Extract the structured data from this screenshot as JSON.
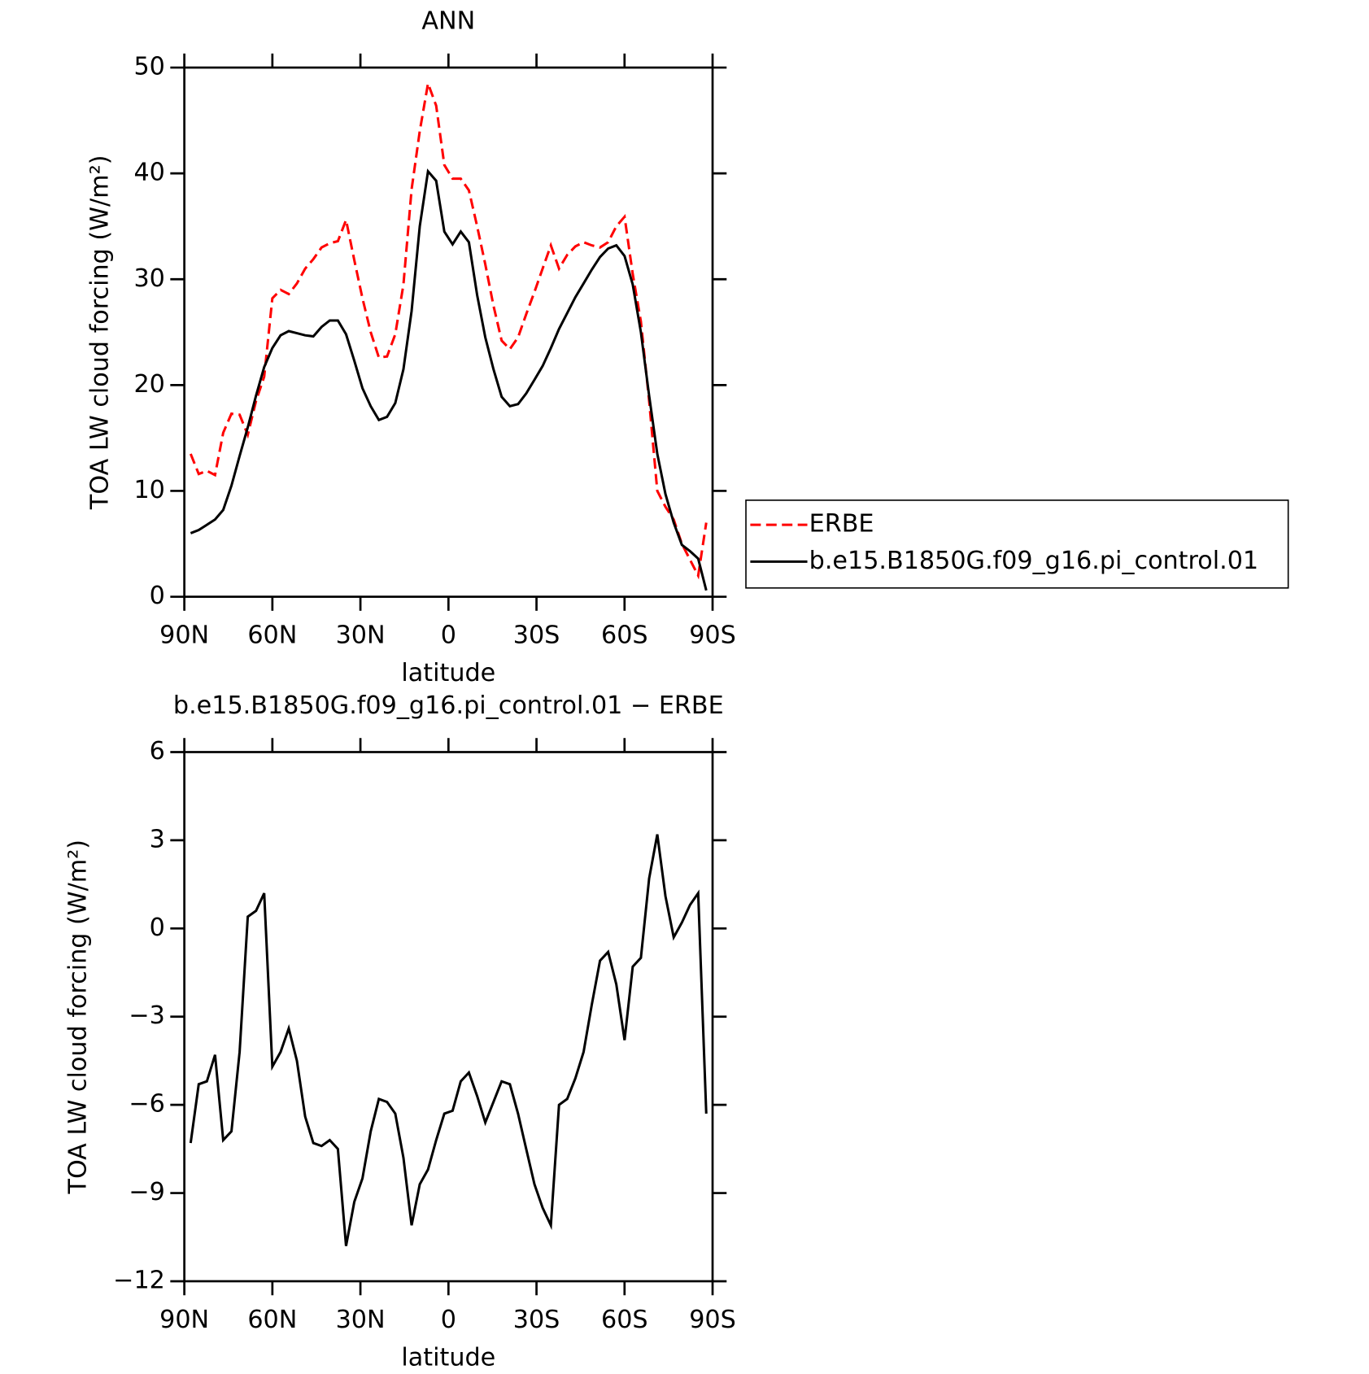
{
  "chart_data": [
    {
      "type": "line",
      "title": "ANN",
      "xlabel": "latitude",
      "ylabel": "TOA LW cloud forcing (W/m²)",
      "x": [
        87.86,
        85.1,
        82.31,
        79.53,
        76.74,
        73.95,
        71.16,
        68.37,
        65.58,
        62.79,
        60,
        57.21,
        54.42,
        51.63,
        48.84,
        46.04,
        43.25,
        40.46,
        37.67,
        34.88,
        32.09,
        29.3,
        26.5,
        23.71,
        20.92,
        18.13,
        15.34,
        12.56,
        9.77,
        6.98,
        4.19,
        1.4,
        -1.4,
        -4.19,
        -6.98,
        -9.77,
        -12.56,
        -15.34,
        -18.13,
        -20.92,
        -23.71,
        -26.5,
        -29.3,
        -32.09,
        -34.88,
        -37.67,
        -40.46,
        -43.25,
        -46.04,
        -48.84,
        -51.63,
        -54.42,
        -57.21,
        -60,
        -62.79,
        -65.58,
        -68.37,
        -71.16,
        -73.95,
        -76.74,
        -79.53,
        -82.31,
        -85.1,
        -87.86
      ],
      "series": [
        {
          "name": "ERBE",
          "color": "#ff0000",
          "dash": true,
          "values": [
            13.5,
            11.6,
            11.9,
            11.5,
            15.5,
            17.3,
            17.2,
            15.3,
            18.5,
            20.8,
            28.2,
            29.0,
            28.6,
            29.6,
            31.0,
            31.9,
            33.0,
            33.4,
            33.6,
            35.6,
            31.8,
            28.2,
            25.0,
            22.6,
            22.7,
            24.8,
            29.5,
            38.5,
            44.0,
            48.5,
            46.4,
            40.8,
            39.5,
            39.5,
            38.4,
            35.0,
            31.4,
            27.5,
            24.2,
            23.4,
            24.5,
            26.7,
            28.8,
            31.0,
            33.2,
            31.0,
            32.3,
            33.1,
            33.5,
            33.2,
            33.0,
            33.5,
            35.0,
            35.9,
            30.5,
            26.0,
            18.5,
            10.0,
            8.5,
            7.3,
            5.0,
            3.5,
            2.0,
            7.0
          ]
        },
        {
          "name": "b.e15.B1850G.f09_g16.pi_control.01",
          "color": "#000000",
          "dash": false,
          "values": [
            6.0,
            6.3,
            6.8,
            7.3,
            8.2,
            10.5,
            13.3,
            16.0,
            19.0,
            21.7,
            23.5,
            24.7,
            25.1,
            24.9,
            24.7,
            24.6,
            25.5,
            26.1,
            26.1,
            24.8,
            22.3,
            19.7,
            18.0,
            16.7,
            17.0,
            18.3,
            21.5,
            27.0,
            35.0,
            40.2,
            39.3,
            34.5,
            33.3,
            34.5,
            33.5,
            28.5,
            24.5,
            21.5,
            18.9,
            18.0,
            18.2,
            19.2,
            20.5,
            21.8,
            23.5,
            25.3,
            26.8,
            28.3,
            29.6,
            30.9,
            32.1,
            32.9,
            33.2,
            32.2,
            29.5,
            25.0,
            19.0,
            13.5,
            9.7,
            7.0,
            4.9,
            4.3,
            3.6,
            0.6
          ]
        }
      ],
      "xlim": [
        90,
        -90
      ],
      "ylim": [
        0,
        50
      ],
      "xticks": [
        {
          "value": 90,
          "label": "90N"
        },
        {
          "value": 60,
          "label": "60N"
        },
        {
          "value": 30,
          "label": "30N"
        },
        0,
        {
          "value": -30,
          "label": "30S"
        },
        {
          "value": -60,
          "label": "60S"
        },
        {
          "value": -90,
          "label": "90S"
        }
      ],
      "yticks": [
        0,
        10,
        20,
        30,
        40,
        50
      ],
      "legend": "right"
    },
    {
      "type": "line",
      "title": "b.e15.B1850G.f09_g16.pi_control.01 − ERBE",
      "xlabel": "latitude",
      "ylabel": "TOA LW cloud forcing (W/m²)",
      "x": [
        87.86,
        85.1,
        82.31,
        79.53,
        76.74,
        73.95,
        71.16,
        68.37,
        65.58,
        62.79,
        60,
        57.21,
        54.42,
        51.63,
        48.84,
        46.04,
        43.25,
        40.46,
        37.67,
        34.88,
        32.09,
        29.3,
        26.5,
        23.71,
        20.92,
        18.13,
        15.34,
        12.56,
        9.77,
        6.98,
        4.19,
        1.4,
        -1.4,
        -4.19,
        -6.98,
        -9.77,
        -12.56,
        -15.34,
        -18.13,
        -20.92,
        -23.71,
        -26.5,
        -29.3,
        -32.09,
        -34.88,
        -37.67,
        -40.46,
        -43.25,
        -46.04,
        -48.84,
        -51.63,
        -54.42,
        -57.21,
        -60,
        -62.79,
        -65.58,
        -68.37,
        -71.16,
        -73.95,
        -76.74,
        -79.53,
        -82.31,
        -85.1,
        -87.86
      ],
      "series": [
        {
          "color": "#000000",
          "dash": false,
          "values": [
            -7.3,
            -5.3,
            -5.2,
            -4.3,
            -7.2,
            -6.9,
            -4.2,
            0.4,
            0.6,
            1.2,
            -4.7,
            -4.2,
            -3.4,
            -4.5,
            -6.4,
            -7.3,
            -7.4,
            -7.2,
            -7.5,
            -10.8,
            -9.3,
            -8.5,
            -6.9,
            -5.8,
            -5.9,
            -6.3,
            -7.8,
            -10.1,
            -8.7,
            -8.2,
            -7.2,
            -6.3,
            -6.2,
            -5.2,
            -4.9,
            -5.7,
            -6.6,
            -5.9,
            -5.2,
            -5.3,
            -6.3,
            -7.5,
            -8.7,
            -9.5,
            -10.1,
            -6.0,
            -5.8,
            -5.1,
            -4.2,
            -2.6,
            -1.1,
            -0.8,
            -1.9,
            -3.8,
            -1.3,
            -1.0,
            1.7,
            3.2,
            1.1,
            -0.3,
            0.2,
            0.8,
            1.2,
            -6.3
          ]
        }
      ],
      "xlim": [
        90,
        -90
      ],
      "ylim": [
        -12,
        6
      ],
      "xticks": [
        {
          "value": 90,
          "label": "90N"
        },
        {
          "value": 60,
          "label": "60N"
        },
        {
          "value": 30,
          "label": "30N"
        },
        0,
        {
          "value": -30,
          "label": "30S"
        },
        {
          "value": -60,
          "label": "60S"
        },
        {
          "value": -90,
          "label": "90S"
        }
      ],
      "yticks": [
        {
          "value": -12,
          "label": "−12"
        },
        {
          "value": -9,
          "label": "−9"
        },
        {
          "value": -6,
          "label": "−6"
        },
        {
          "value": -3,
          "label": "−3"
        },
        0,
        3,
        6
      ]
    }
  ]
}
